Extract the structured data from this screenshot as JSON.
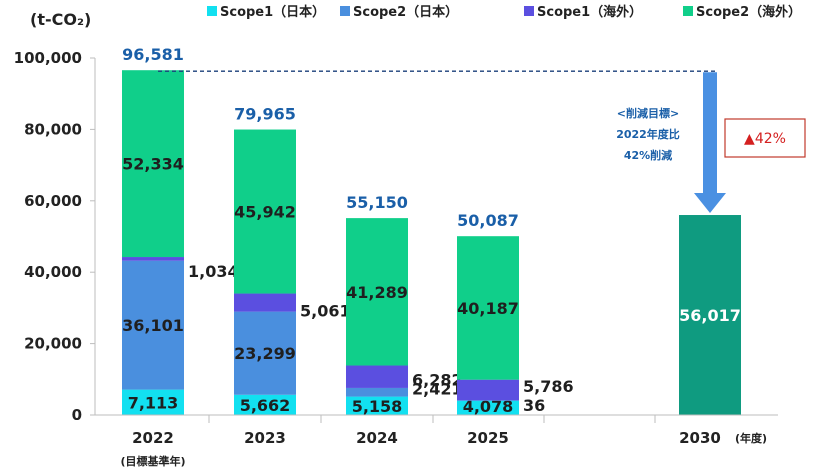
{
  "chart_data": {
    "type": "bar",
    "stacked": true,
    "unit_label": "(t-CO₂)",
    "categories": [
      "2022",
      "2023",
      "2024",
      "2025",
      "2030"
    ],
    "category_sublabels": {
      "2022": "(目標基準年)",
      "2030": "(年度)"
    },
    "ylim": [
      0,
      100000
    ],
    "yticks": [
      "0",
      "20,000",
      "40,000",
      "60,000",
      "80,000",
      "100,000"
    ],
    "grid": false,
    "legend_position": "top",
    "series": [
      {
        "name": "Scope1（日本）",
        "color": "#12e0f0",
        "values": [
          7113,
          5662,
          5158,
          4078,
          null
        ],
        "labels": [
          "7,113",
          "5,662",
          "5,158",
          "4,078",
          ""
        ]
      },
      {
        "name": "Scope2（日本）",
        "color": "#4a8fde",
        "values": [
          36101,
          23299,
          2421,
          36,
          null
        ],
        "labels": [
          "36,101",
          "23,299",
          "2,421",
          "36",
          ""
        ]
      },
      {
        "name": "Scope1（海外）",
        "color": "#5b4fe0",
        "values": [
          1034,
          5061,
          6282,
          5786,
          null
        ],
        "labels": [
          "1,034",
          "5,061",
          "6,282",
          "5,786",
          ""
        ]
      },
      {
        "name": "Scope2（海外）",
        "color": "#10cf8a",
        "values": [
          52334,
          45942,
          41289,
          40187,
          null
        ],
        "labels": [
          "52,334",
          "45,942",
          "41,289",
          "40,187",
          ""
        ]
      }
    ],
    "totals": [
      "96,581",
      "79,965",
      "55,150",
      "50,087"
    ],
    "target": {
      "year": "2030",
      "value": 56017,
      "label": "56,017",
      "color": "#0f9b80"
    },
    "annotations": {
      "target_note": [
        "<削減目標>",
        "2022年度比",
        "42%削減"
      ],
      "reduction_badge": "▲42%"
    }
  }
}
